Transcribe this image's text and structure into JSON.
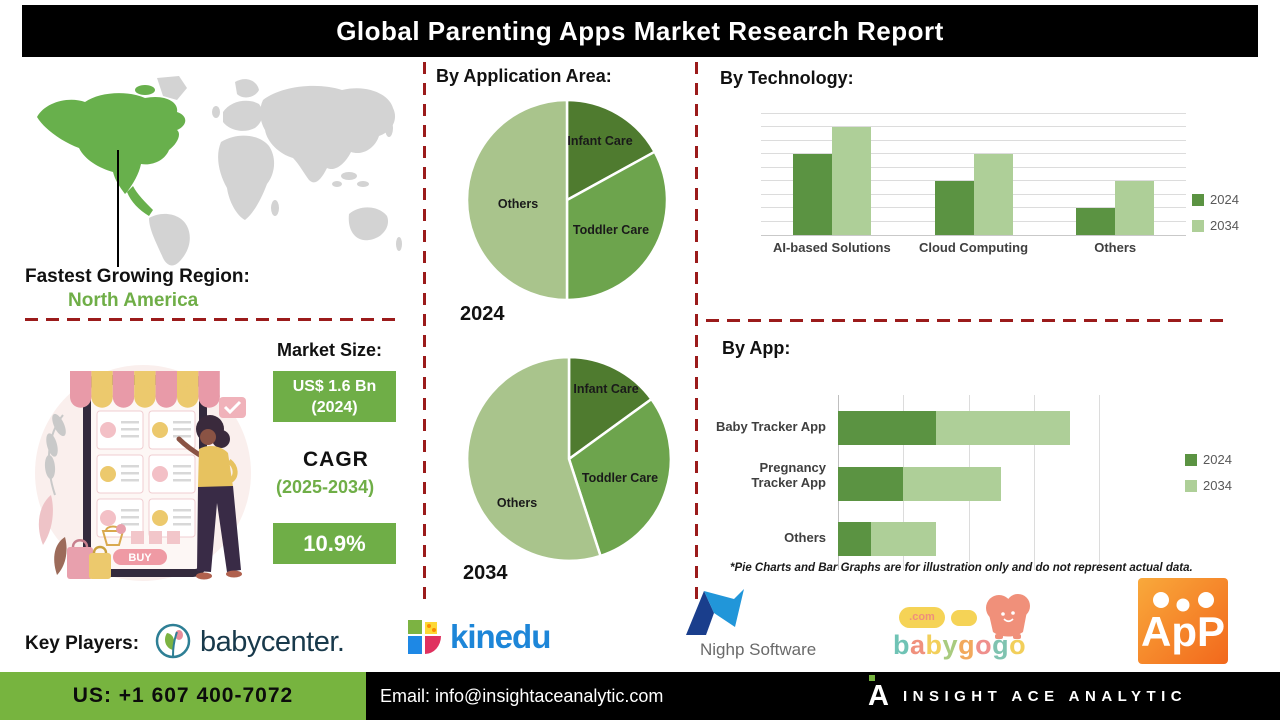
{
  "title": "Global Parenting Apps Market Research Report",
  "region": {
    "label": "Fastest Growing Region:",
    "value": "North America"
  },
  "market": {
    "size_label": "Market Size:",
    "size_value": "US$ 1.6 Bn",
    "size_year": "(2024)",
    "cagr_label": "CAGR",
    "cagr_period": "(2025-2034)",
    "cagr_value": "10.9%"
  },
  "sections": {
    "application": "By Application Area:",
    "technology": "By Technology:",
    "app": "By App:"
  },
  "note": "*Pie Charts and Bar Graphs are for illustration only and do not represent actual data.",
  "key_players": {
    "label": "Key Players:",
    "babycenter": "babycenter.",
    "kinedu": "kinedu",
    "nighp": "Nighp Software",
    "babygogo_com": ".com",
    "babygogo_letters": [
      {
        "ch": "b",
        "color": "#6fc3b5"
      },
      {
        "ch": "a",
        "color": "#f0917d"
      },
      {
        "ch": "b",
        "color": "#f2cf5b"
      },
      {
        "ch": "y",
        "color": "#a9cb7f"
      },
      {
        "ch": "g",
        "color": "#f2a95d"
      },
      {
        "ch": "o",
        "color": "#ef8f8c"
      },
      {
        "ch": "g",
        "color": "#7fc3b0"
      },
      {
        "ch": "o",
        "color": "#f2cf5b"
      }
    ],
    "app_logo": "ApP"
  },
  "footer": {
    "phone": "US: +1 607 400-7072",
    "email": "Email: info@insightaceanalytic.com",
    "brand": "INSIGHT ACE ANALYTIC",
    "brand_initial": "A"
  },
  "colors": {
    "accent_green": "#6fae47",
    "footer_green": "#77b43f",
    "separator_red": "#9b1b1b",
    "map_highlight_green": "#68b04c",
    "bar_2024": "#5b9342",
    "bar_2034": "#aecf98"
  },
  "chart_data": [
    {
      "type": "pie",
      "name": "By Application Area - 2024",
      "title": "2024",
      "labels": [
        "Infant Care",
        "Toddler Care",
        "Others"
      ],
      "values": [
        17,
        33,
        50
      ],
      "colors": [
        "#4f7b2f",
        "#6da44d",
        "#a9c48c"
      ],
      "units": "percent share (illustrative)"
    },
    {
      "type": "pie",
      "name": "By Application Area - 2034",
      "title": "2034",
      "labels": [
        "Infant Care",
        "Toddler Care",
        "Others"
      ],
      "values": [
        15,
        30,
        55
      ],
      "colors": [
        "#4f7b2f",
        "#6da44d",
        "#a9c48c"
      ],
      "units": "percent share (illustrative)"
    },
    {
      "type": "bar",
      "name": "By Technology",
      "categories": [
        "AI-based Solutions",
        "Cloud Computing",
        "Others"
      ],
      "series": [
        {
          "name": "2024",
          "values": [
            6,
            4,
            2
          ]
        },
        {
          "name": "2034",
          "values": [
            8,
            6,
            4
          ]
        }
      ],
      "colors": [
        "#5b9342",
        "#aecf98"
      ],
      "ylim": [
        0,
        9
      ],
      "grid": true,
      "legend_position": "right",
      "units": "illustrative"
    },
    {
      "type": "bar",
      "orientation": "horizontal",
      "stacked": true,
      "name": "By App",
      "categories": [
        "Baby Tracker App",
        "Pregnancy Tracker App",
        "Others"
      ],
      "series": [
        {
          "name": "2024",
          "values": [
            1.5,
            1.0,
            0.5
          ]
        },
        {
          "name": "2034",
          "values": [
            2.05,
            1.5,
            1.0
          ]
        }
      ],
      "colors": [
        "#5b9342",
        "#aecf98"
      ],
      "xlim": [
        0,
        4
      ],
      "grid": true,
      "legend_position": "right",
      "units": "illustrative"
    }
  ]
}
